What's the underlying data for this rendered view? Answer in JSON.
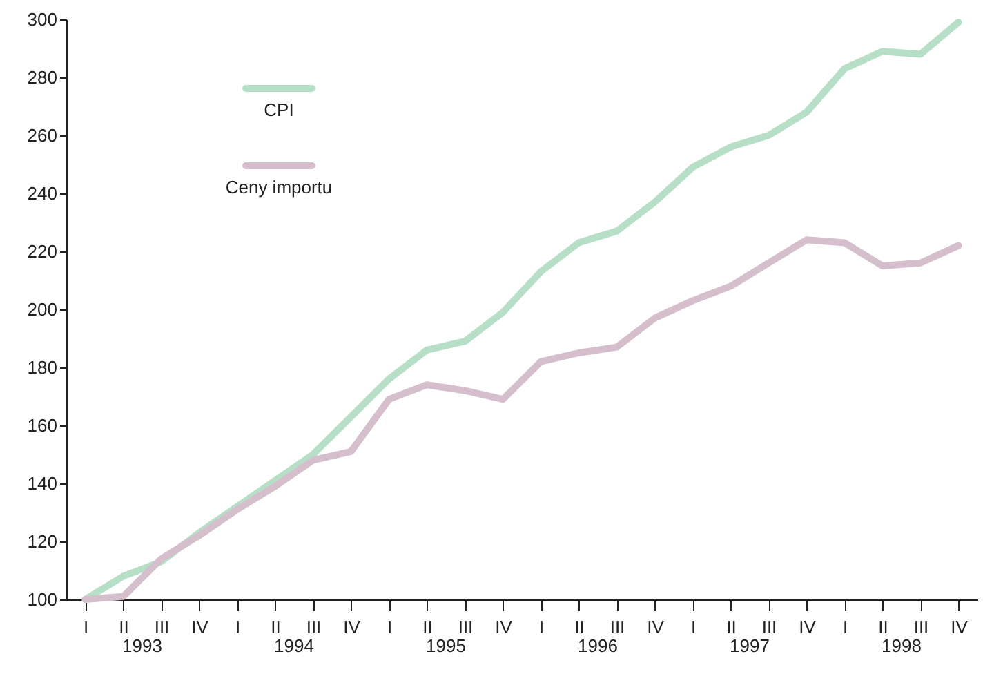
{
  "chart_data": {
    "type": "line",
    "categories": [
      "I",
      "II",
      "III",
      "IV",
      "I",
      "II",
      "III",
      "IV",
      "I",
      "II",
      "III",
      "IV",
      "I",
      "II",
      "III",
      "IV",
      "I",
      "II",
      "III",
      "IV",
      "I",
      "II",
      "III",
      "IV"
    ],
    "series": [
      {
        "name": "CPI",
        "color": "#b7dfc8",
        "values": [
          100,
          108,
          113,
          123,
          132,
          141,
          150,
          163,
          176,
          186,
          189,
          199,
          213,
          223,
          227,
          237,
          249,
          256,
          260,
          268,
          283,
          289,
          288,
          299
        ]
      },
      {
        "name": "Ceny importu",
        "color": "#d6bfcc",
        "values": [
          100,
          101,
          114,
          122,
          131,
          139,
          148,
          151,
          169,
          174,
          172,
          169,
          182,
          185,
          187,
          197,
          203,
          208,
          216,
          224,
          223,
          215,
          216,
          222
        ]
      }
    ],
    "annotations": [
      "1993",
      "1994",
      "1995",
      "1996",
      "1997",
      "1998"
    ],
    "ylim": [
      100,
      300
    ],
    "yticks": [
      100,
      120,
      140,
      160,
      180,
      200,
      220,
      240,
      260,
      280,
      300
    ],
    "grid": false,
    "legend": "top left",
    "marker": "none",
    "line_style": "solid"
  }
}
